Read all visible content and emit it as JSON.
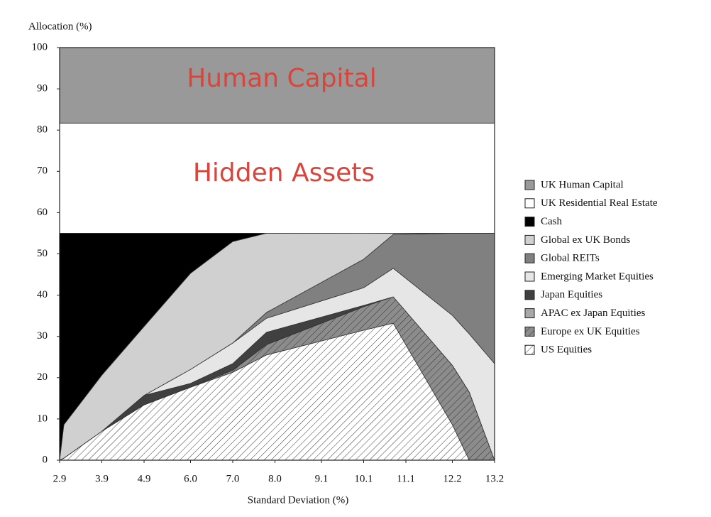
{
  "chart_data": {
    "type": "stacked_area",
    "y_label": "Allocation (%)",
    "x_label": "Standard Deviation (%)",
    "annotations": [
      "Human Capital",
      "Hidden Assets"
    ],
    "x": [
      2.9,
      3.0,
      3.9,
      4.9,
      6.0,
      7.0,
      7.8,
      10.1,
      10.8,
      12.2,
      12.6,
      13.2
    ],
    "xlim": [
      2.9,
      13.2
    ],
    "xticks": [
      2.9,
      3.9,
      4.9,
      {
        "value": 6,
        "label": "6.0"
      },
      {
        "value": 7,
        "label": "7.0"
      },
      {
        "value": 8,
        "label": "8.0"
      },
      9.1,
      10.1,
      11.1,
      12.2,
      13.2
    ],
    "ylim": [
      0,
      100
    ],
    "yticks": [
      0,
      10,
      20,
      30,
      40,
      50,
      60,
      70,
      80,
      90,
      100
    ],
    "legend": "right",
    "series": [
      {
        "name": "US Equities",
        "color": "#ffffff",
        "pattern": "hatch",
        "values": [
          0,
          0.5,
          7,
          13.4,
          17.7,
          21.3,
          25.5,
          31.5,
          33.2,
          8.6,
          0,
          0
        ]
      },
      {
        "name": "Europe ex UK Equities",
        "color": "#8c8c8c",
        "pattern": "hatch",
        "values": [
          0,
          0,
          0,
          0,
          0,
          0.5,
          2.5,
          5.7,
          6.4,
          14.4,
          16.5,
          0
        ]
      },
      {
        "name": "APAC ex Japan Equities",
        "color": "#a8a8a8",
        "values": [
          0,
          0,
          0,
          0,
          0,
          0,
          0,
          0,
          0,
          0,
          0,
          0
        ]
      },
      {
        "name": "Japan Equities",
        "color": "#404040",
        "values": [
          0,
          0,
          0,
          2.3,
          0.9,
          1.6,
          3,
          0.3,
          0,
          0,
          0,
          0
        ]
      },
      {
        "name": "Emerging Market Equities",
        "color": "#e6e6e6",
        "values": [
          0,
          0,
          0,
          0,
          3.4,
          5,
          3.4,
          4.3,
          6.9,
          12.1,
          14.1,
          23.4
        ]
      },
      {
        "name": "Global REITs",
        "color": "#808080",
        "values": [
          0,
          0,
          0,
          0,
          0,
          0,
          1.4,
          6.9,
          8.2,
          19.9,
          24.4,
          31.6
        ]
      },
      {
        "name": "Global ex UK Bonds",
        "color": "#d0d0d0",
        "values": [
          0,
          8.1,
          13.6,
          16.7,
          23.3,
          24.6,
          19.2,
          6.3,
          0.3,
          0,
          0,
          0
        ]
      },
      {
        "name": "Cash",
        "color": "#000000",
        "values": [
          55,
          46.4,
          34.4,
          22.6,
          9.7,
          2,
          0,
          0,
          0,
          0,
          0,
          0
        ]
      },
      {
        "name": "UK Residential Real Estate",
        "color": "#ffffff",
        "values": [
          26.7,
          26.7,
          26.7,
          26.7,
          26.7,
          26.7,
          26.7,
          26.7,
          26.7,
          26.7,
          26.7,
          26.7
        ]
      },
      {
        "name": "UK Human Capital",
        "color": "#999999",
        "values": [
          18.3,
          18.3,
          18.3,
          18.3,
          18.3,
          18.3,
          18.3,
          18.3,
          18.3,
          18.3,
          18.3,
          18.3
        ]
      }
    ]
  }
}
